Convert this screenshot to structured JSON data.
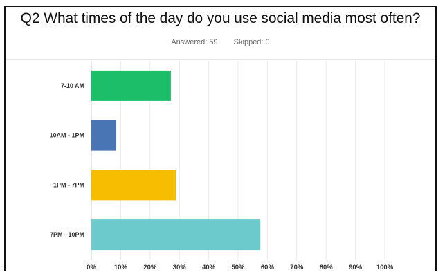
{
  "survey": {
    "question": "Q2 What times of the day do you use social media most often?",
    "answered_label": "Answered: 59",
    "skipped_label": "Skipped: 0"
  },
  "chart_data": {
    "type": "bar",
    "orientation": "horizontal",
    "categories": [
      "7-10 AM",
      "10AM - 1PM",
      "1PM - 7PM",
      "7PM - 10PM"
    ],
    "values": [
      27.1,
      8.5,
      28.8,
      57.6
    ],
    "colors": [
      "#1dbe6a",
      "#4a75b4",
      "#f7bd00",
      "#6ccacc"
    ],
    "xlim": [
      0,
      100
    ],
    "xticks": [
      "0%",
      "10%",
      "20%",
      "30%",
      "40%",
      "50%",
      "60%",
      "70%",
      "80%",
      "90%",
      "100%"
    ],
    "grid": true
  }
}
